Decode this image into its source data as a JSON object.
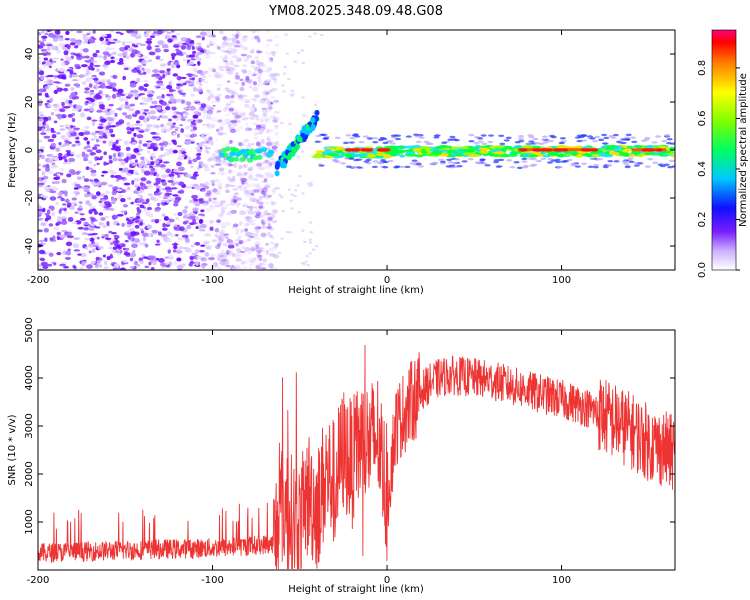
{
  "title": "YM08.2025.348.09.48.G08",
  "chart_data": [
    {
      "type": "heatmap",
      "title": "YM08.2025.348.09.48.G08",
      "xlabel": "Height of straight line (km)",
      "ylabel": "Frequency (Hz)",
      "xlim": [
        -200,
        165
      ],
      "ylim": [
        -50,
        50
      ],
      "xticks": [
        -200,
        -100,
        0,
        100
      ],
      "yticks": [
        -40,
        -20,
        0,
        20,
        40
      ],
      "noise_end_x": -63,
      "description_regions": [
        {
          "from": -200,
          "to": -63,
          "kind": "broadband noise"
        },
        {
          "from": -95,
          "to": -63,
          "kind": "weak signal near 0 Hz"
        },
        {
          "from": -63,
          "to": -40,
          "kind": "rising frequency arc"
        },
        {
          "from": -40,
          "to": 165,
          "kind": "strong carrier near 0 Hz"
        }
      ],
      "colorbar": {
        "label": "Normalized spectral amplitude",
        "range": [
          0,
          0.95
        ],
        "ticks": [
          0.0,
          0.2,
          0.4,
          0.6,
          0.8
        ]
      }
    },
    {
      "type": "line",
      "xlabel": "Height of straight line (km)",
      "ylabel": "SNR (10 * v/v)",
      "xlim": [
        -200,
        165
      ],
      "ylim": [
        0,
        5000
      ],
      "xticks": [
        -200,
        -100,
        0,
        100
      ],
      "yticks": [
        1000,
        2000,
        3000,
        4000,
        5000
      ],
      "series": [
        {
          "name": "SNR",
          "color": "#ee3333",
          "x": [
            -200,
            -180,
            -160,
            -140,
            -120,
            -100,
            -80,
            -65,
            -60,
            -55,
            -50,
            -45,
            -40,
            -35,
            -30,
            -25,
            -20,
            -15,
            -10,
            -5,
            0,
            5,
            10,
            15,
            20,
            25,
            30,
            35,
            40,
            50,
            60,
            70,
            80,
            90,
            100,
            110,
            120,
            130,
            140,
            150,
            160,
            165
          ],
          "values": [
            350,
            380,
            400,
            420,
            440,
            460,
            500,
            550,
            1400,
            1100,
            900,
            1600,
            1300,
            2000,
            1800,
            2500,
            2200,
            2700,
            2600,
            2800,
            1500,
            3000,
            3300,
            3550,
            3750,
            3900,
            4000,
            4050,
            4050,
            4000,
            3950,
            3850,
            3750,
            3650,
            3550,
            3450,
            3300,
            3100,
            2900,
            2650,
            2500,
            2400
          ]
        }
      ]
    }
  ]
}
